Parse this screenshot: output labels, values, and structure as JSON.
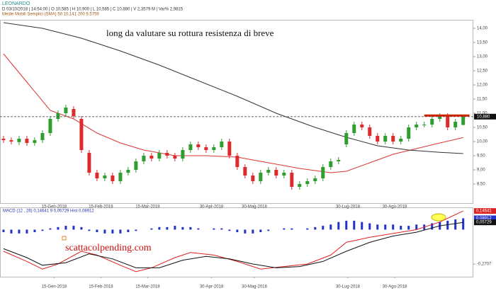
{
  "chart_data": [
    {
      "type": "candlestick",
      "title": "LEONARDO",
      "subtitle": "D  03/10/2018  | 14:54:00  | O 10,585  | H 10,900  | L 10,585  | C 10,880  | V 2,3579 M  | Var% 2,9815",
      "legend_text": "Medie Mobili Semplici (SMA)    50    10,141    200    9,5759",
      "annotation": "long da valutare su rottura resistenza di breve",
      "watermark": "scattacolpending.com",
      "xlim": [
        -0.45,
        60.3
      ],
      "ylim": [
        7.825,
        14.3
      ],
      "xticks": [
        {
          "value": 6.5,
          "label": "15-Gen-2018"
        },
        {
          "value": 12.5,
          "label": "15-Feb-2018"
        },
        {
          "value": 18.5,
          "label": "15-Mar-2018"
        },
        {
          "value": 26.7,
          "label": "30-Apr-2018"
        },
        {
          "value": 32.2,
          "label": "30-Mag-2018"
        },
        {
          "value": 44.2,
          "label": "30-Lug-2018"
        },
        {
          "value": 50.2,
          "label": "30-Ago-2018"
        }
      ],
      "yticks": [
        {
          "value": 8.5,
          "label": "8,50"
        },
        {
          "value": 9,
          "label": "9,00"
        },
        {
          "value": 9.5,
          "label": "9,50"
        },
        {
          "value": 10,
          "label": "10,00"
        },
        {
          "value": 10.5,
          "label": "10,50"
        },
        {
          "value": 11,
          "label": "11,00"
        },
        {
          "value": 11.5,
          "label": "11,50"
        },
        {
          "value": 12,
          "label": "12,00"
        },
        {
          "value": 12.5,
          "label": "12,50"
        },
        {
          "value": 13,
          "label": "13,00"
        },
        {
          "value": 13.5,
          "label": "13,50"
        },
        {
          "value": 14,
          "label": "14,00"
        }
      ],
      "up_color": "#2e9e2e",
      "down_color": "#dd2b2b",
      "open": [
        10.1,
        10.05,
        9.98,
        10.1,
        9.95,
        10.05,
        10.3,
        10.8,
        11.0,
        11.15,
        10.8,
        9.6,
        8.9,
        8.7,
        8.8,
        8.6,
        8.9,
        9.0,
        9.3,
        9.5,
        9.4,
        9.6,
        9.5,
        9.4,
        9.7,
        9.9,
        9.8,
        9.7,
        9.8,
        10.0,
        9.5,
        9.1,
        8.8,
        8.6,
        8.9,
        9.0,
        8.8,
        8.9,
        8.4,
        8.5,
        8.6,
        8.7,
        9.1,
        9.3,
        9.9,
        10.3,
        10.6,
        10.5,
        10.2,
        10.0,
        10.2,
        10.0,
        10.1,
        10.5,
        10.6,
        10.6,
        10.8,
        10.9,
        10.5,
        10.585
      ],
      "high": [
        10.2,
        10.15,
        10.2,
        10.2,
        10.15,
        10.4,
        10.9,
        11.1,
        11.3,
        11.25,
        10.9,
        9.7,
        9.0,
        8.9,
        8.9,
        9.0,
        9.1,
        9.4,
        9.6,
        9.6,
        9.7,
        9.7,
        9.6,
        9.8,
        10.0,
        10.0,
        9.9,
        9.9,
        10.1,
        10.1,
        9.6,
        9.2,
        8.9,
        9.0,
        9.1,
        9.1,
        9.0,
        9.0,
        8.6,
        8.7,
        8.8,
        9.2,
        9.4,
        9.45,
        10.4,
        10.7,
        10.7,
        10.6,
        10.3,
        10.3,
        10.3,
        10.2,
        10.6,
        10.7,
        10.7,
        10.9,
        11.0,
        11.0,
        10.8,
        10.9
      ],
      "low": [
        9.95,
        9.9,
        9.88,
        9.85,
        9.85,
        9.95,
        10.2,
        10.7,
        10.9,
        10.8,
        9.6,
        8.8,
        8.6,
        8.6,
        8.5,
        8.5,
        8.8,
        8.9,
        9.2,
        9.3,
        9.3,
        9.4,
        9.3,
        9.3,
        9.6,
        9.7,
        9.6,
        9.6,
        9.7,
        9.4,
        9.0,
        8.7,
        8.5,
        8.5,
        8.8,
        8.7,
        8.7,
        8.3,
        8.3,
        8.4,
        8.5,
        8.6,
        9.0,
        9.2,
        9.8,
        10.2,
        10.4,
        10.1,
        9.9,
        9.9,
        9.9,
        9.9,
        10.0,
        10.4,
        10.5,
        10.5,
        10.7,
        10.4,
        10.4,
        10.585
      ],
      "close": [
        10.05,
        10.0,
        10.1,
        9.95,
        10.05,
        10.3,
        10.8,
        11.0,
        11.2,
        10.9,
        9.7,
        8.9,
        8.7,
        8.8,
        8.6,
        8.9,
        9.0,
        9.3,
        9.5,
        9.4,
        9.6,
        9.5,
        9.4,
        9.7,
        9.9,
        9.8,
        9.7,
        9.8,
        10.0,
        9.5,
        9.1,
        8.8,
        8.6,
        8.9,
        9.0,
        8.8,
        8.9,
        8.4,
        8.5,
        8.6,
        8.7,
        9.1,
        9.3,
        9.35,
        10.3,
        10.6,
        10.5,
        10.2,
        10.0,
        10.2,
        10.0,
        10.1,
        10.5,
        10.6,
        10.6,
        10.8,
        10.9,
        10.5,
        10.7,
        10.88
      ],
      "series": [
        {
          "color": "#dd3333",
          "x": [
            0,
            3,
            6,
            9,
            12,
            15,
            18,
            22,
            26,
            30,
            34,
            38,
            42,
            44,
            47,
            50,
            53,
            56,
            59
          ],
          "values": [
            13.1,
            12.1,
            11.1,
            10.8,
            10.3,
            9.95,
            9.7,
            9.5,
            9.5,
            9.45,
            9.25,
            9.05,
            8.9,
            8.95,
            9.25,
            9.55,
            9.75,
            9.95,
            10.141
          ]
        },
        {
          "color": "#333333",
          "x": [
            0,
            5,
            10,
            15,
            20,
            25,
            30,
            35,
            40,
            44,
            48,
            52,
            56,
            59
          ],
          "values": [
            14.2,
            14.0,
            13.65,
            13.2,
            12.7,
            12.15,
            11.6,
            11.0,
            10.5,
            10.15,
            9.85,
            9.7,
            9.62,
            9.5759
          ]
        }
      ],
      "last_price": {
        "value": 10.88,
        "label": "10,880"
      },
      "resistance": {
        "value": 10.92,
        "x": [
          54,
          59.8
        ],
        "color": "#cc2200"
      }
    },
    {
      "type": "macd",
      "title": "MACD    (12 , 26)    0,14641    9    0,05729    Hist    0,08912",
      "xlim": [
        -0.45,
        60.3
      ],
      "ylim": [
        -0.37,
        0.175
      ],
      "yticks": [
        {
          "value": -0.2707,
          "label": "-0,2707"
        }
      ],
      "histogram": {
        "color": "#2233cc",
        "values": [
          -0.02,
          -0.03,
          -0.03,
          -0.03,
          -0.02,
          -0.01,
          0.01,
          0.02,
          0.03,
          0.03,
          0.02,
          -0.01,
          -0.02,
          -0.03,
          -0.03,
          -0.03,
          -0.02,
          -0.01,
          0.0,
          0.01,
          0.02,
          0.02,
          0.03,
          0.02,
          0.02,
          0.01,
          0.0,
          0.01,
          0.01,
          -0.01,
          -0.02,
          -0.03,
          -0.03,
          -0.02,
          -0.01,
          0.0,
          0.01,
          0.01,
          0.0,
          0.01,
          0.02,
          0.03,
          0.04,
          0.06,
          0.07,
          0.07,
          0.06,
          0.05,
          0.04,
          0.04,
          0.04,
          0.03,
          0.03,
          0.04,
          0.04,
          0.05,
          0.06,
          0.07,
          0.08,
          0.08912
        ]
      },
      "series": [
        {
          "color": "#dd2222",
          "x": [
            0,
            3,
            5,
            7,
            10,
            12,
            15,
            17,
            19,
            22,
            24,
            27,
            30,
            33,
            36,
            39,
            42,
            44,
            47,
            50,
            53,
            56,
            59
          ],
          "values": [
            -0.17,
            -0.25,
            -0.31,
            -0.27,
            -0.17,
            -0.2,
            -0.28,
            -0.33,
            -0.3,
            -0.22,
            -0.18,
            -0.2,
            -0.25,
            -0.31,
            -0.29,
            -0.27,
            -0.2,
            -0.1,
            -0.06,
            -0.03,
            0.0,
            0.06,
            0.14641
          ]
        },
        {
          "color": "#111111",
          "x": [
            0,
            3,
            5,
            8,
            11,
            14,
            17,
            20,
            23,
            26,
            29,
            32,
            35,
            38,
            41,
            44,
            47,
            50,
            53,
            56,
            59
          ],
          "values": [
            -0.15,
            -0.22,
            -0.28,
            -0.26,
            -0.19,
            -0.23,
            -0.3,
            -0.3,
            -0.24,
            -0.21,
            -0.23,
            -0.27,
            -0.3,
            -0.29,
            -0.25,
            -0.17,
            -0.1,
            -0.05,
            -0.02,
            0.03,
            0.05729
          ]
        }
      ],
      "right_labels": [
        {
          "value": 0.14641,
          "label": "0,14641",
          "color": "#dd2222"
        },
        {
          "value": 0.08912,
          "label": "0,08912",
          "color": "#2233cc"
        },
        {
          "value": 0.05729,
          "label": "0,05729",
          "color": "#111111"
        }
      ]
    }
  ]
}
